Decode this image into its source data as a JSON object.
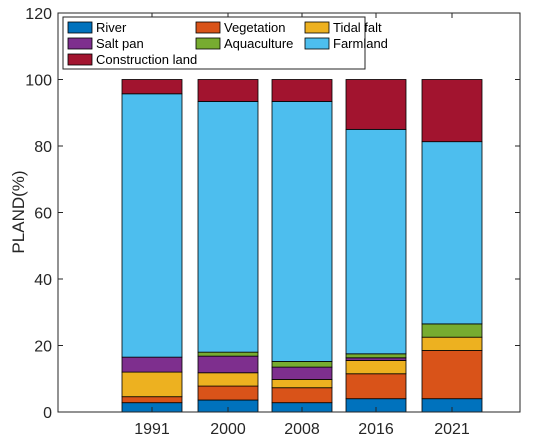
{
  "chart_data": {
    "type": "bar",
    "stacked": true,
    "categories": [
      "1991",
      "2000",
      "2008",
      "2016",
      "2021"
    ],
    "ylabel": "PLAND(%)",
    "xlabel": "",
    "ylim": [
      0,
      120
    ],
    "yticks": [
      0,
      20,
      40,
      60,
      80,
      100,
      120
    ],
    "grid": false,
    "legend_position": "top-left",
    "series": [
      {
        "name": "River",
        "color": "#0072BD",
        "values": [
          2.8,
          3.6,
          2.8,
          4.0,
          4.0
        ]
      },
      {
        "name": "Vegetation",
        "color": "#D95319",
        "values": [
          1.8,
          4.2,
          4.5,
          7.5,
          14.5
        ]
      },
      {
        "name": "Tidal falt",
        "color": "#EDB120",
        "values": [
          7.4,
          4.0,
          2.5,
          4.0,
          4.0
        ]
      },
      {
        "name": "Salt pan",
        "color": "#7E2F8E",
        "values": [
          4.5,
          5.0,
          3.7,
          0.8,
          0.0
        ]
      },
      {
        "name": "Aquaculture",
        "color": "#77AC30",
        "values": [
          0.0,
          1.2,
          1.7,
          1.2,
          4.0
        ]
      },
      {
        "name": "Farmland",
        "color": "#4DBEEE",
        "values": [
          79.2,
          75.4,
          78.2,
          67.5,
          54.8
        ]
      },
      {
        "name": "Construction land",
        "color": "#A2142F",
        "values": [
          4.3,
          6.6,
          6.6,
          15.0,
          18.7
        ]
      }
    ]
  }
}
